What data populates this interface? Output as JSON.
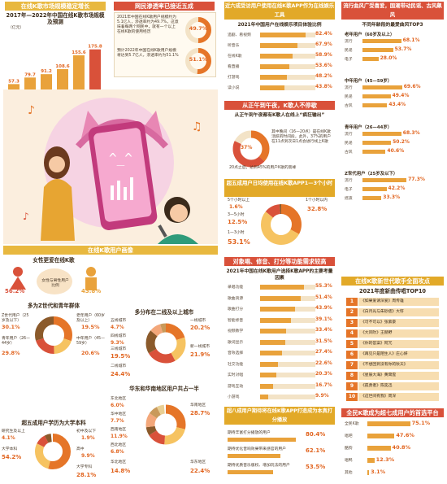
{
  "s1": {
    "title": "在线K歌市场规模稳定增长",
    "chart_title": "2017年—2022年中国在线K歌市场规模及预测",
    "unit": "（亿元）",
    "chart_data": {
      "type": "bar",
      "categories": [
        "2017年",
        "2018年",
        "2019年",
        "2020年",
        "2021年",
        "2022年"
      ],
      "values": [
        57.3,
        79.7,
        91.2,
        108.6,
        155.6,
        175.8
      ],
      "ylabel": "（亿元）"
    }
  },
  "s2": {
    "title": "网民渗透率已接近五成",
    "p1": "2021年中国在线K歌用户规模约为5.1亿人，渗透率约为49.7%，这意味着每两个网民中，就有一个以上在线K歌的使用经历",
    "p2": "预计2022年中国在线K歌用户规模将达到5.7亿人，渗透率约为51.1%",
    "v1": "49.7%",
    "v2": "51.1%"
  },
  "s3": {
    "title": "近六成受访用户使用在线K歌APP作为在线娱乐工具",
    "chart_title": "2021年中国用户在线娱乐项目体验比例",
    "chart_data": {
      "type": "bar",
      "categories": [
        "追剧、看视频",
        "听音乐",
        "在线K歌",
        "看直播",
        "打游戏",
        "读小说"
      ],
      "values": [
        82.4,
        67.9,
        58.9,
        53.6,
        48.2,
        43.8
      ]
    }
  },
  "s4": {
    "title": "从正午到午夜，K歌人不停歇",
    "sub": "从正午到午夜都有K歌人在线上“疯狂输出”",
    "p1": "其中晚间（16—20点）是在线K歌活跃的时间段，此外，37%的用户在11点到次日1点会进行线上K歌",
    "p2": "20点之后，达到45%的用户K歌的高峰",
    "v1": "37%",
    "v2": "45%"
  },
  "s5": {
    "title": "超五成用户日均使用在线K歌APP1—3个小时",
    "labels": [
      "5个小时以上",
      "3—5小时",
      "1—3小时",
      "1个小时以内"
    ],
    "chart_data": {
      "type": "pie",
      "categories": [
        "1个小时以内",
        "1—3小时",
        "3—5小时",
        "5个小时以上"
      ],
      "values": [
        32.8,
        53.1,
        12.5,
        1.6
      ]
    },
    "v": [
      "1.6%",
      "12.5%",
      "53.1%",
      "32.8%"
    ]
  },
  "s6": {
    "title": "对象唱、修音、打分等功能需求较高",
    "chart_title": "2021年中国在线K歌用户选择K歌APP的主要考量因素",
    "chart_data": {
      "type": "bar",
      "categories": [
        "录唱功能",
        "歌曲资源",
        "歌曲打分",
        "智能修音",
        "视频教学",
        "歌词显示",
        "音效选择",
        "社交功能",
        "实时对唱",
        "游戏互动",
        "小游戏"
      ],
      "values": [
        55.3,
        51.4,
        43.9,
        39.1,
        33.4,
        31.5,
        27.4,
        22.6,
        20.3,
        16.7,
        9.9
      ]
    }
  },
  "s7": {
    "title": "超八成用户期待将在线K歌APP打造成为本真打分播放",
    "rows": [
      {
        "label": "期待丰富打分播放的用户",
        "value": "80.4%"
      },
      {
        "label": "期待优化音响效果带来感官的用户",
        "value": "62.1%"
      },
      {
        "label": "期待优质音乐版权、增加玩法的用户",
        "value": "53.5%"
      }
    ]
  },
  "s8": {
    "title": "流行曲风广受喜爱，国潮带动民谣、古风飙风",
    "chart_title": "不同年龄段的最爱曲风TOP3",
    "groups": [
      {
        "name": "老年用户（60岁及以上）",
        "items": [
          {
            "label": "流行",
            "value": "68.1%",
            "v": 68.1
          },
          {
            "label": "民谣",
            "value": "53.7%",
            "v": 53.7
          },
          {
            "label": "电子",
            "value": "28.0%",
            "v": 28.0
          }
        ]
      },
      {
        "name": "中年用户（45—59岁）",
        "items": [
          {
            "label": "流行",
            "value": "69.6%",
            "v": 69.6
          },
          {
            "label": "民谣",
            "value": "49.4%",
            "v": 49.4
          },
          {
            "label": "古风",
            "value": "43.4%",
            "v": 43.4
          }
        ]
      },
      {
        "name": "青年用户（26—44岁）",
        "items": [
          {
            "label": "流行",
            "value": "68.3%",
            "v": 68.3
          },
          {
            "label": "民谣",
            "value": "50.2%",
            "v": 50.2
          },
          {
            "label": "古风",
            "value": "40.6%",
            "v": 40.6
          }
        ]
      },
      {
        "name": "Z世代用户（25岁及以下）",
        "items": [
          {
            "label": "流行",
            "value": "77.3%",
            "v": 77.3
          },
          {
            "label": "电子",
            "value": "42.2%",
            "v": 42.2
          },
          {
            "label": "摇滚",
            "value": "33.3%",
            "v": 33.3
          }
        ]
      }
    ]
  },
  "s9": {
    "title": "在线K歌新世代歌手全面攻点",
    "list_title": "2021年度新曲传唱TOP10",
    "items": [
      "《如果爱请深爱》周传雄",
      "《白月光与朱砂痣》大籽",
      "《可不可以》张紫豪",
      "《大风吹》王赫野",
      "《你的答案》阿冗",
      "《再见只是陌生人》庄心妍",
      "《不想回到没有你的秋天》",
      "《星辰大海》黄霄雲",
      "《孤勇者》陈奕迅",
      "《这世间有我》周深"
    ]
  },
  "s10": {
    "title": "全民K歌成为超七成用户的首选平台",
    "rows": [
      {
        "label": "全民K歌",
        "value": "75.1%",
        "v": 75.1
      },
      {
        "label": "唱吧",
        "value": "47.6%",
        "v": 47.6
      },
      {
        "label": "酷狗",
        "value": "40.8%",
        "v": 40.8
      },
      {
        "label": "唱鸭",
        "value": "12.3%",
        "v": 12.3
      },
      {
        "label": "其他",
        "value": "3.1%",
        "v": 3.1
      }
    ]
  },
  "s11": {
    "title": "在线K歌用户画像",
    "gender_title": "女性更爱在线K歌",
    "gender_note": "女性与男性用户比例",
    "female": "56.2%",
    "male": "43.8%",
    "age_title": "多为Z世代和青年群体",
    "age": [
      {
        "label": "Z世代用户（25岁及以下）",
        "value": "30.1%"
      },
      {
        "label": "老年用户（60岁及以上）",
        "value": "19.5%"
      },
      {
        "label": "青年用户（26—44岁）",
        "value": "29.8%"
      },
      {
        "label": "中年用户（45—59岁）",
        "value": "20.6%"
      }
    ],
    "edu_title": "超五成用户学历为大学本科",
    "edu": [
      {
        "label": "研究生及以上",
        "value": "4.1%"
      },
      {
        "label": "初中及以下",
        "value": "1.9%"
      },
      {
        "label": "大学本科",
        "value": "54.2%"
      },
      {
        "label": "高中",
        "value": "9.9%"
      },
      {
        "label": "大学专科",
        "value": "28.1%"
      }
    ],
    "city_title": "多分布在二线及以上城市",
    "city": [
      {
        "label": "五线城市",
        "value": "4.7%"
      },
      {
        "label": "一线城市",
        "value": "20.2%"
      },
      {
        "label": "四线城市",
        "value": "9.3%"
      },
      {
        "label": "三线城市",
        "value": "19.5%"
      },
      {
        "label": "新一线城市",
        "value": "21.9%"
      },
      {
        "label": "二线城市",
        "value": "24.4%"
      }
    ],
    "region_title": "华东和华南地区用户共占一半",
    "region": [
      {
        "label": "东北地区",
        "value": "6.0%"
      },
      {
        "label": "华南地区",
        "value": "28.7%"
      },
      {
        "label": "华中地区",
        "value": "7.7%"
      },
      {
        "label": "西南地区",
        "value": "11.9%"
      },
      {
        "label": "西北地区",
        "value": "6.8%"
      },
      {
        "label": "华北地区",
        "value": "14.8%"
      },
      {
        "label": "华东地区",
        "value": "22.4%"
      }
    ]
  }
}
